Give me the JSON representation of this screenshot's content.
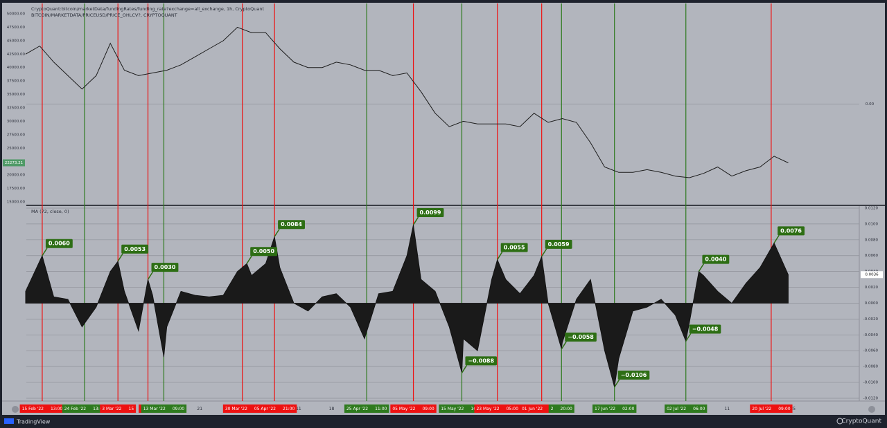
{
  "chart_data": [
    {
      "type": "line",
      "title": "CryptoQuant:bitcoin/marketData/fundingRates/funding_rate?exchange=all_exchange, 1h, CryptoQuant",
      "subtitle": "BITCOIN/MARKETDATA/PRICEUSD/PRICE_OHLCV?, CRYPTOQUANT",
      "x": [
        "2022-02-12",
        "2022-02-15",
        "2022-02-18",
        "2022-02-21",
        "2022-02-24",
        "2022-02-27",
        "2022-03-02",
        "2022-03-05",
        "2022-03-08",
        "2022-03-11",
        "2022-03-14",
        "2022-03-17",
        "2022-03-20",
        "2022-03-23",
        "2022-03-26",
        "2022-03-29",
        "2022-04-01",
        "2022-04-04",
        "2022-04-07",
        "2022-04-10",
        "2022-04-13",
        "2022-04-16",
        "2022-04-19",
        "2022-04-22",
        "2022-04-25",
        "2022-04-28",
        "2022-05-01",
        "2022-05-04",
        "2022-05-07",
        "2022-05-10",
        "2022-05-13",
        "2022-05-16",
        "2022-05-19",
        "2022-05-22",
        "2022-05-25",
        "2022-05-28",
        "2022-05-31",
        "2022-06-03",
        "2022-06-06",
        "2022-06-09",
        "2022-06-12",
        "2022-06-15",
        "2022-06-18",
        "2022-06-21",
        "2022-06-24",
        "2022-06-27",
        "2022-06-30",
        "2022-07-03",
        "2022-07-06",
        "2022-07-09",
        "2022-07-12",
        "2022-07-15",
        "2022-07-18",
        "2022-07-21",
        "2022-07-24"
      ],
      "values": [
        42500,
        44000,
        41000,
        38500,
        36000,
        38500,
        44500,
        39500,
        38500,
        39000,
        39500,
        40500,
        42000,
        43500,
        45000,
        47500,
        46500,
        46500,
        43500,
        41000,
        40000,
        40000,
        41000,
        40500,
        39500,
        39500,
        38500,
        39000,
        35500,
        31500,
        29000,
        30000,
        29500,
        29500,
        29500,
        29000,
        31500,
        29800,
        30500,
        29800,
        26000,
        21500,
        20500,
        20500,
        21000,
        20500,
        19800,
        19500,
        20300,
        21500,
        19800,
        20800,
        21500,
        23500,
        22273.21
      ],
      "color": "#1c1c1c",
      "xlim": [
        "2022-02-12 04:00",
        "2022-08-08 02:00"
      ],
      "ylim": [
        14485,
        51930
      ],
      "yticks": [
        {
          "value": 15000,
          "label": "15000.00"
        },
        {
          "value": 17500,
          "label": "17500.00"
        },
        {
          "value": 20000,
          "label": "20000.00"
        },
        {
          "value": 22500,
          "label": "22500.00"
        },
        {
          "value": 25000,
          "label": "25000.00"
        },
        {
          "value": 27500,
          "label": "27500.00"
        },
        {
          "value": 30000,
          "label": "30000.00"
        },
        {
          "value": 32500,
          "label": "32500.00"
        },
        {
          "value": 35000,
          "label": "35000.00"
        },
        {
          "value": 37500,
          "label": "37500.00"
        },
        {
          "value": 40000,
          "label": "40000.00"
        },
        {
          "value": 42500,
          "label": "42500.00"
        },
        {
          "value": 45000,
          "label": "45000.00"
        },
        {
          "value": 47500,
          "label": "47500.00"
        },
        {
          "value": 50000,
          "label": "50000.00"
        }
      ],
      "y_axis_side": "left",
      "y2lim": [
        -1,
        1
      ],
      "y2ticks": [
        {
          "value": 0,
          "label": "0.00"
        }
      ],
      "current_label": {
        "value": 22273.21,
        "label": "22273.21"
      },
      "current_color": "#4f9a67"
    },
    {
      "type": "area",
      "title": "MA (72, close, 0)",
      "x": [
        "2022-02-12",
        "2022-02-15 13:00",
        "2022-02-18",
        "2022-02-21",
        "2022-02-24",
        "2022-02-27",
        "2022-03-02",
        "2022-03-03 15:00",
        "2022-03-05",
        "2022-03-08",
        "2022-03-10",
        "2022-03-11",
        "2022-03-13 09:00",
        "2022-03-14",
        "2022-03-17",
        "2022-03-20",
        "2022-03-23",
        "2022-03-26",
        "2022-03-29",
        "2022-03-31",
        "2022-04-01",
        "2022-04-04",
        "2022-04-05 21:00",
        "2022-04-07",
        "2022-04-10",
        "2022-04-13",
        "2022-04-16",
        "2022-04-19",
        "2022-04-22",
        "2022-04-25",
        "2022-04-28",
        "2022-05-01",
        "2022-05-04",
        "2022-05-05 09:00",
        "2022-05-07",
        "2022-05-10",
        "2022-05-13",
        "2022-05-15 16:00",
        "2022-05-16",
        "2022-05-19",
        "2022-05-22",
        "2022-05-23 05:00",
        "2022-05-25",
        "2022-05-28",
        "2022-05-31",
        "2022-06-01 15:00",
        "2022-06-03",
        "2022-06-05 20:00",
        "2022-06-06",
        "2022-06-09",
        "2022-06-12",
        "2022-06-15",
        "2022-06-17 02:00",
        "2022-06-18",
        "2022-06-21",
        "2022-06-24",
        "2022-06-27",
        "2022-06-30",
        "2022-07-02 06:00",
        "2022-07-03",
        "2022-07-05",
        "2022-07-06",
        "2022-07-09",
        "2022-07-12",
        "2022-07-15",
        "2022-07-18",
        "2022-07-21",
        "2022-07-24"
      ],
      "values": [
        0.0015,
        0.006,
        0.0008,
        0.0005,
        -0.003,
        -0.0005,
        0.004,
        0.0053,
        0.0015,
        -0.0035,
        0.003,
        0.001,
        -0.0068,
        -0.003,
        0.0015,
        0.001,
        0.0008,
        0.001,
        0.004,
        0.005,
        0.0035,
        0.005,
        0.0084,
        0.0045,
        0,
        -0.001,
        0.0008,
        0.0012,
        -0.0005,
        -0.0045,
        0.0012,
        0.0015,
        0.006,
        0.0099,
        0.003,
        0.0015,
        -0.003,
        -0.0088,
        -0.0045,
        -0.006,
        0.003,
        0.0055,
        0.003,
        0.0012,
        0.0035,
        0.0059,
        0,
        -0.0058,
        -0.005,
        0.0005,
        0.003,
        -0.006,
        -0.0106,
        -0.007,
        -0.001,
        -0.0005,
        0.0005,
        -0.0015,
        -0.0048,
        -0.0025,
        0.004,
        0.0035,
        0.0015,
        0,
        0.0025,
        0.0045,
        0.0076,
        0.0036
      ],
      "color": "#1a1a1a",
      "xlim": [
        "2022-02-12 04:00",
        "2022-08-08 02:00"
      ],
      "ylim": [
        -0.01235,
        0.01226
      ],
      "yticks": [
        {
          "value": 0.012,
          "label": "0.0120"
        },
        {
          "value": 0.01,
          "label": "0.0100"
        },
        {
          "value": 0.008,
          "label": "0.0080"
        },
        {
          "value": 0.006,
          "label": "0.0060"
        },
        {
          "value": 0.004,
          "label": "0.0040"
        },
        {
          "value": 0.002,
          "label": "0.0020"
        },
        {
          "value": 0,
          "label": "0.0000"
        },
        {
          "value": -0.002,
          "label": "-0.0020"
        },
        {
          "value": -0.004,
          "label": "-0.0040"
        },
        {
          "value": -0.006,
          "label": "-0.0060"
        },
        {
          "value": -0.008,
          "label": "-0.0080"
        },
        {
          "value": -0.01,
          "label": "-0.0100"
        },
        {
          "value": -0.012,
          "label": "-0.0120"
        }
      ],
      "y_axis_side": "right",
      "grid": true,
      "current_label": {
        "value": 0.0036,
        "label": "0.0036"
      },
      "current_color": "#ffffff",
      "annotation_color": "#2d6e14",
      "annotations": [
        {
          "x": "2022-02-15 13:00",
          "value": 0.006,
          "label": "0.0060"
        },
        {
          "x": "2022-03-03 15:00",
          "value": 0.0053,
          "label": "0.0053"
        },
        {
          "x": "2022-03-10",
          "value": 0.003,
          "label": "0.0030"
        },
        {
          "x": "2022-03-31",
          "value": 0.005,
          "label": "0.0050"
        },
        {
          "x": "2022-04-05 21:00",
          "value": 0.0084,
          "label": "0.0084"
        },
        {
          "x": "2022-05-05 09:00",
          "value": 0.0099,
          "label": "0.0099"
        },
        {
          "x": "2022-05-15 16:00",
          "value": -0.0088,
          "label": "−0.0088"
        },
        {
          "x": "2022-05-23 05:00",
          "value": 0.0055,
          "label": "0.0055"
        },
        {
          "x": "2022-06-01 15:00",
          "value": 0.0059,
          "label": "0.0059"
        },
        {
          "x": "2022-06-05 20:00",
          "value": -0.0058,
          "label": "−0.0058"
        },
        {
          "x": "2022-06-17 02:00",
          "value": -0.0106,
          "label": "−0.0106"
        },
        {
          "x": "2022-07-02 06:00",
          "value": -0.0048,
          "label": "−0.0048"
        },
        {
          "x": "2022-07-05",
          "value": 0.004,
          "label": "0.0040"
        },
        {
          "x": "2022-07-21",
          "value": 0.0076,
          "label": "0.0076"
        }
      ],
      "markers": [
        {
          "x": "2022-02-15 13:00",
          "color": "#ee1111",
          "date": "15 Feb '22",
          "time": "13:00"
        },
        {
          "x": "2022-02-24 13:00",
          "color": "#2e7a1e",
          "date": "24 Feb '22",
          "time": "13:00"
        },
        {
          "x": "2022-03-03 15:00",
          "color": "#ee1111",
          "date": "3 Mar '22",
          "time": "15"
        },
        {
          "x": "2022-03-10",
          "color": "#ee1111",
          "date": "10 Mar"
        },
        {
          "x": "2022-03-13 09:00",
          "color": "#2e7a1e",
          "date": "13 Mar '22",
          "time": "09:00"
        },
        {
          "x": "2022-03-30 01:00",
          "color": "#ee1111",
          "date": "30 Mar '22",
          "time": "01"
        },
        {
          "x": "2022-04-05 21:00",
          "color": "#ee1111",
          "date": "05 Apr '22",
          "time": "21:00"
        },
        {
          "x": "2022-04-25 11:00",
          "color": "#2e7a1e",
          "date": "25 Apr '22",
          "time": "11:00"
        },
        {
          "x": "2022-05-05 09:00",
          "color": "#ee1111",
          "date": "05 May '22",
          "time": "09:00"
        },
        {
          "x": "2022-05-15 16:00",
          "color": "#2e7a1e",
          "date": "15 May '22",
          "time": "16:00"
        },
        {
          "x": "2022-05-23 05:00",
          "color": "#ee1111",
          "date": "23 May '22",
          "time": "05:00"
        },
        {
          "x": "2022-06-01 15:00",
          "color": "#ee1111",
          "date": "01 Jun '22",
          "time": "15:00"
        },
        {
          "x": "2022-06-05 20:00",
          "color": "#2e7a1e",
          "date": "2",
          "time": "20:00"
        },
        {
          "x": "2022-06-17 02:00",
          "color": "#2e7a1e",
          "date": "17 Jun '22",
          "time": "02:00"
        },
        {
          "x": "2022-07-02 06:00",
          "color": "#2e7a1e",
          "date": "02 Jul '22",
          "time": "06:00"
        },
        {
          "x": "2022-07-20 09:00",
          "color": "#ee1111",
          "date": "20 Jul '22",
          "time": "09:00"
        }
      ],
      "xticks": [
        {
          "value": "2022-03-21",
          "label": "21"
        },
        {
          "value": "2022-04-11",
          "label": "11"
        },
        {
          "value": "2022-04-18",
          "label": "18"
        },
        {
          "value": "2022-07-11",
          "label": "11"
        },
        {
          "value": "2022-07-25",
          "label": "25"
        }
      ]
    }
  ],
  "branding": {
    "left": "TradingView",
    "right": "CryptoQuant"
  }
}
